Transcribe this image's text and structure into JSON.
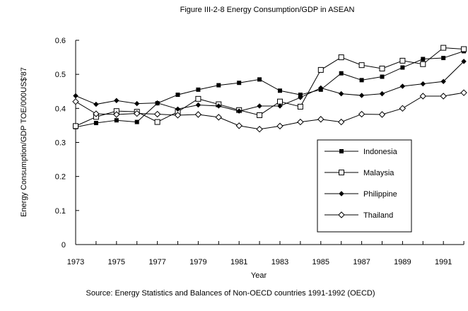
{
  "chart_data": {
    "type": "line",
    "title": "Figure III-2-8   Energy Consumption/GDP in ASEAN",
    "xlabel": "Year",
    "ylabel": "Energy Consumption/GDP  TOE/000US$'87",
    "source": "Source: Energy Statistics and Balances of Non-OECD countries 1991-1992 (OECD)",
    "x": [
      1973,
      1974,
      1975,
      1976,
      1977,
      1978,
      1979,
      1980,
      1981,
      1982,
      1983,
      1984,
      1985,
      1986,
      1987,
      1988,
      1989,
      1990,
      1991,
      1992
    ],
    "x_tick_labels": [
      "1973",
      "1975",
      "1977",
      "1979",
      "1981",
      "1983",
      "1985",
      "1987",
      "1989",
      "1991"
    ],
    "y_tick_labels": [
      "0",
      "0.1",
      "0.2",
      "0.3",
      "0.4",
      "0.5",
      "0.6"
    ],
    "xlim": [
      1973,
      1992
    ],
    "ylim": [
      0,
      0.6
    ],
    "grid": false,
    "legend_position": "center-right",
    "series": [
      {
        "name": "Indonesia",
        "marker": "filled-square",
        "values": [
          0.345,
          0.357,
          0.365,
          0.36,
          0.415,
          0.44,
          0.455,
          0.468,
          0.475,
          0.485,
          0.452,
          0.44,
          0.455,
          0.503,
          0.483,
          0.493,
          0.52,
          0.545,
          0.548,
          0.568
        ]
      },
      {
        "name": "Malaysia",
        "marker": "open-square",
        "values": [
          0.348,
          0.375,
          0.392,
          0.39,
          0.36,
          0.39,
          0.428,
          0.412,
          0.395,
          0.38,
          0.42,
          0.405,
          0.513,
          0.55,
          0.527,
          0.517,
          0.54,
          0.53,
          0.578,
          0.574
        ]
      },
      {
        "name": "Philippine",
        "marker": "filled-diamond",
        "values": [
          0.437,
          0.412,
          0.423,
          0.414,
          0.416,
          0.398,
          0.41,
          0.407,
          0.392,
          0.407,
          0.407,
          0.432,
          0.46,
          0.443,
          0.438,
          0.443,
          0.465,
          0.472,
          0.479,
          0.538
        ]
      },
      {
        "name": "Thailand",
        "marker": "open-diamond",
        "values": [
          0.42,
          0.384,
          0.382,
          0.385,
          0.383,
          0.38,
          0.382,
          0.374,
          0.349,
          0.339,
          0.348,
          0.36,
          0.368,
          0.36,
          0.383,
          0.382,
          0.4,
          0.436,
          0.436,
          0.446
        ]
      }
    ]
  }
}
